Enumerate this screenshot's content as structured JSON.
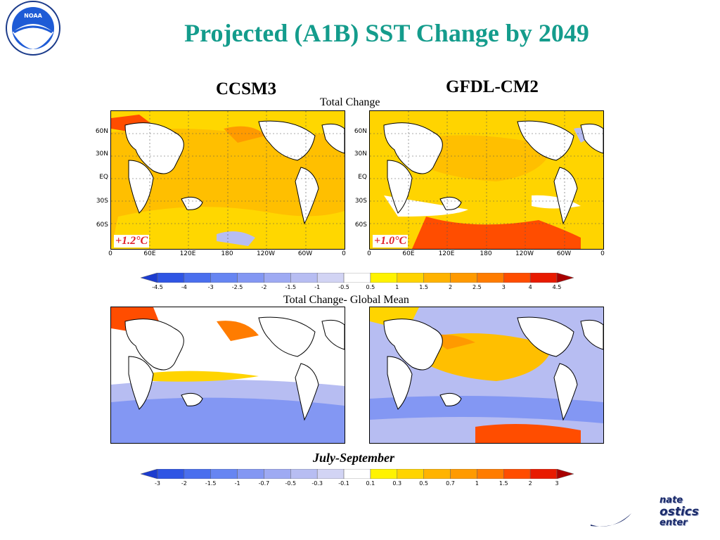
{
  "header": {
    "logo_text": "NOAA",
    "title": "Projected (A1B) SST Change by 2049"
  },
  "models": [
    {
      "name": "CCSM3",
      "global_mean_label": "+1.2°C"
    },
    {
      "name": "GFDL-CM2",
      "global_mean_label": "+1.0°C"
    }
  ],
  "captions": {
    "top": "Total Change",
    "bottom": "Total Change- Global Mean",
    "season": "July-September"
  },
  "map_axes": {
    "lat_labels": [
      "60N",
      "30N",
      "EQ",
      "30S",
      "60S"
    ],
    "lon_labels": [
      "0",
      "60E",
      "120E",
      "180",
      "120W",
      "60W",
      "0"
    ]
  },
  "colorbars": {
    "top": {
      "labels": [
        "-4.5",
        "-4",
        "-3",
        "-2.5",
        "-2",
        "-1.5",
        "-1",
        "-0.5",
        "0.5",
        "1",
        "1.5",
        "2",
        "2.5",
        "3",
        "4",
        "4.5"
      ],
      "colors": [
        "#1c3ccf",
        "#2f55e4",
        "#4a6fee",
        "#6685f2",
        "#8397f3",
        "#9eaaf3",
        "#b7bdf2",
        "#d2d4f4",
        "#ffffff",
        "#fff300",
        "#ffd400",
        "#ffb300",
        "#ff9a00",
        "#ff7c00",
        "#ff4d00",
        "#e81a00",
        "#a80000"
      ]
    },
    "bottom": {
      "labels": [
        "-3",
        "-2",
        "-1.5",
        "-1",
        "-0.7",
        "-0.5",
        "-0.3",
        "-0.1",
        "0.1",
        "0.3",
        "0.5",
        "0.7",
        "1",
        "1.5",
        "2",
        "3"
      ],
      "colors": [
        "#1c3ccf",
        "#2f55e4",
        "#4a6fee",
        "#6685f2",
        "#8397f3",
        "#9eaaf3",
        "#b7bdf2",
        "#d2d4f4",
        "#ffffff",
        "#fff300",
        "#ffd400",
        "#ffb300",
        "#ff9a00",
        "#ff7c00",
        "#ff4d00",
        "#e81a00",
        "#a80000"
      ]
    }
  },
  "footer": {
    "logo_lines": [
      "nate",
      "ostics",
      "enter"
    ]
  }
}
